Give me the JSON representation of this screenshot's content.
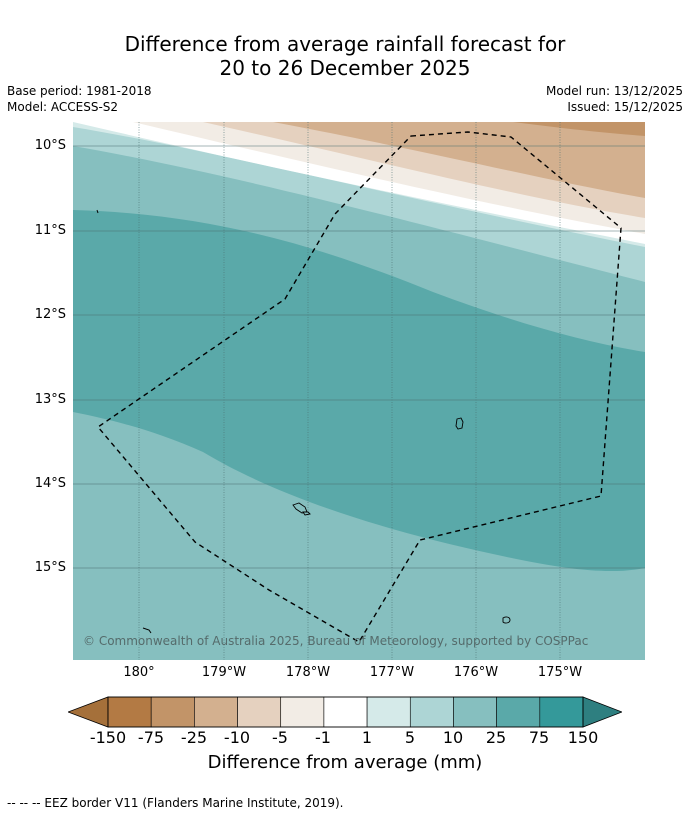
{
  "title": {
    "line1": "Difference from average rainfall forecast for",
    "line2": "20 to 26 December 2025"
  },
  "meta": {
    "base_period": "Base period: 1981-2018",
    "model": "Model: ACCESS-S2",
    "model_run": "Model run: 13/12/2025",
    "issued": "Issued: 15/12/2025"
  },
  "map": {
    "latitude_labels": [
      "10°S",
      "11°S",
      "12°S",
      "13°S",
      "14°S",
      "15°S"
    ],
    "longitude_labels": [
      "180°",
      "179°W",
      "178°W",
      "177°W",
      "176°W",
      "175°W"
    ],
    "copyright": "© Commonwealth of Australia 2025, Bureau of Meteorology, supported by COSPPac"
  },
  "colorbar": {
    "ticks": [
      "-150",
      "-75",
      "-25",
      "-10",
      "-5",
      "-1",
      "1",
      "5",
      "10",
      "25",
      "75",
      "150"
    ],
    "colors": [
      "#a5703a",
      "#b37a44",
      "#c29468",
      "#d3b08f",
      "#e5d1bf",
      "#f2ece5",
      "#ffffff",
      "#d5eae9",
      "#add5d5",
      "#86bfbf",
      "#5aa9a9",
      "#34999a",
      "#2e7f80"
    ],
    "label": "Difference from average (mm)"
  },
  "footer": "--  --  -- EEZ border V11 (Flanders Marine Institute, 2019)."
}
